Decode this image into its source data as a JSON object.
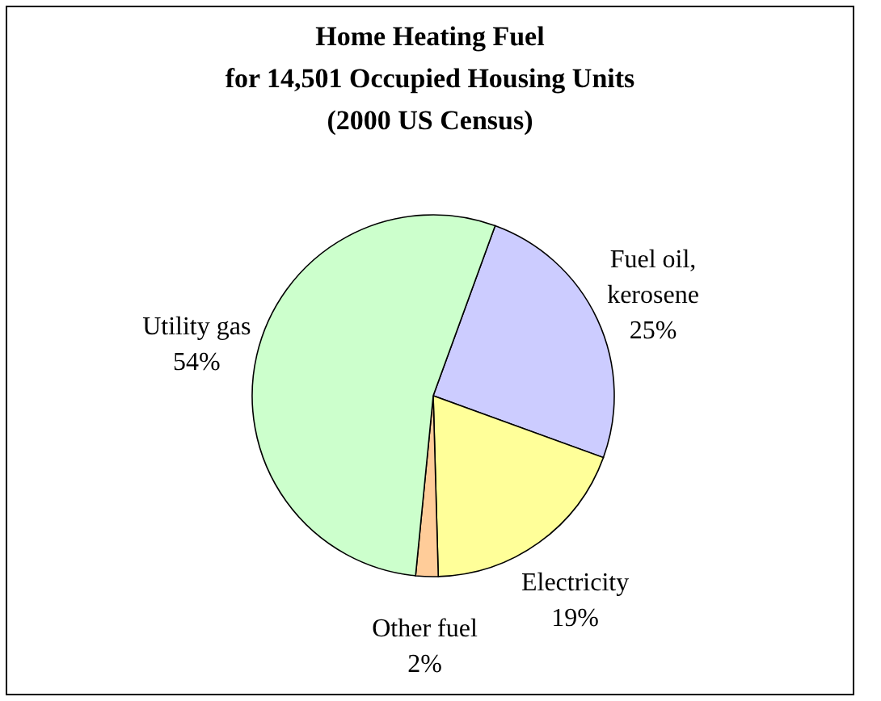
{
  "chart_data": {
    "type": "pie",
    "title": "Home Heating Fuel\nfor 14,501 Occupied Housing Units\n(2000 US Census)",
    "categories": [
      "Fuel oil, kerosene",
      "Electricity",
      "Other fuel",
      "Utility gas"
    ],
    "values": [
      25,
      19,
      2,
      54
    ],
    "value_labels": [
      "25%",
      "19%",
      "2%",
      "54%"
    ],
    "colors": [
      "#ccccff",
      "#ffff99",
      "#ffcc99",
      "#ccffcc"
    ]
  }
}
